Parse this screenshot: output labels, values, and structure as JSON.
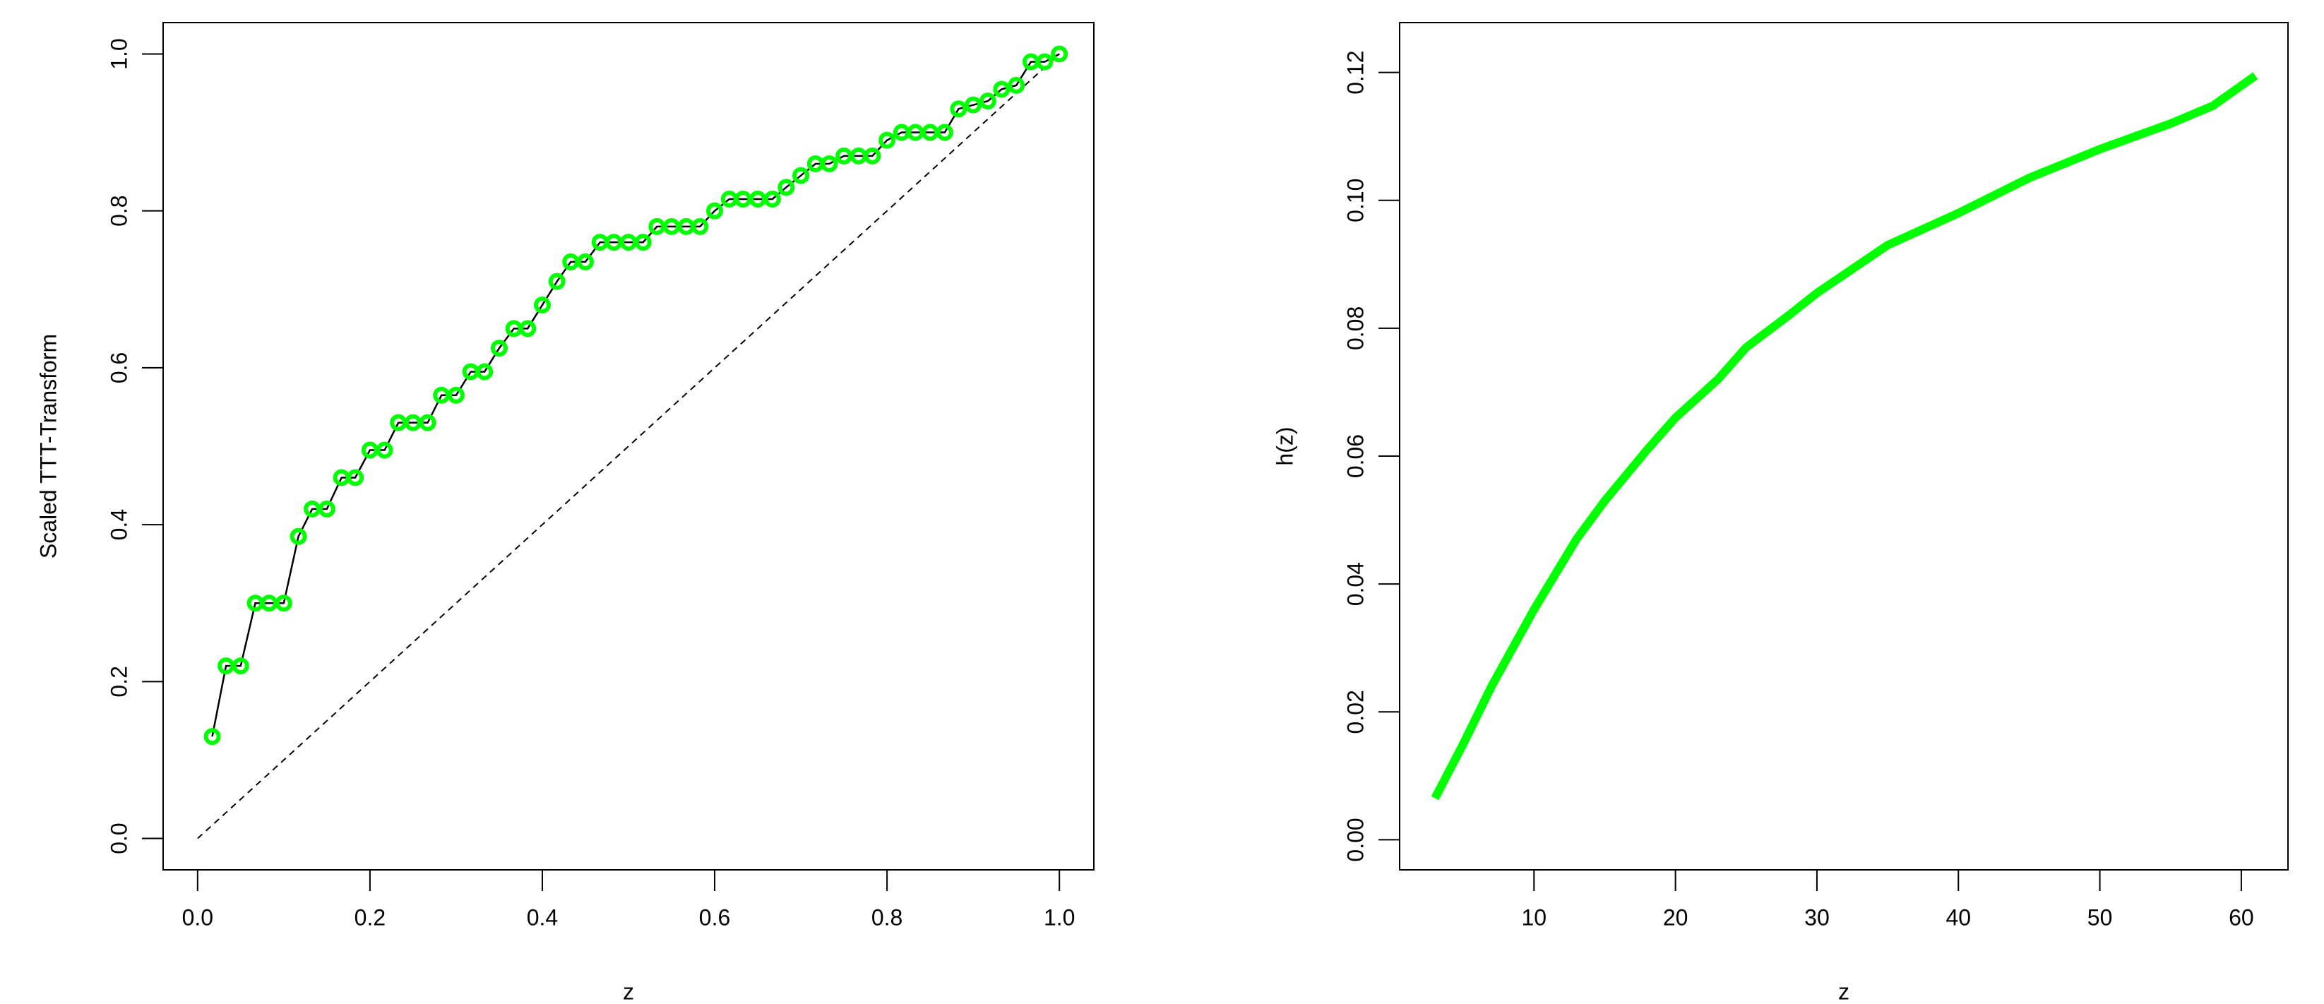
{
  "chart_data": [
    {
      "type": "step-points",
      "xlabel": "z",
      "ylabel": "Scaled TTT-Transform",
      "xlim": [
        -0.04,
        1.04
      ],
      "ylim": [
        -0.04,
        1.04
      ],
      "xticks": [
        {
          "value": 0,
          "label": "0.0"
        },
        {
          "value": 0.2,
          "label": "0.2"
        },
        {
          "value": 0.4,
          "label": "0.4"
        },
        {
          "value": 0.6,
          "label": "0.6"
        },
        {
          "value": 0.8,
          "label": "0.8"
        },
        {
          "value": 1,
          "label": "1.0"
        }
      ],
      "yticks": [
        {
          "value": 0,
          "label": "0.0"
        },
        {
          "value": 0.2,
          "label": "0.2"
        },
        {
          "value": 0.4,
          "label": "0.4"
        },
        {
          "value": 0.6,
          "label": "0.6"
        },
        {
          "value": 0.8,
          "label": "0.8"
        },
        {
          "value": 1,
          "label": "1.0"
        }
      ],
      "reference_line": {
        "x": [
          0,
          1
        ],
        "values": [
          0,
          1
        ],
        "color": "#000000"
      },
      "series": [
        {
          "color": "#00ff00",
          "line_color": "#000000",
          "x": [
            0.017,
            0.033,
            0.05,
            0.067,
            0.083,
            0.1,
            0.117,
            0.133,
            0.15,
            0.167,
            0.183,
            0.2,
            0.217,
            0.233,
            0.25,
            0.267,
            0.283,
            0.3,
            0.317,
            0.333,
            0.35,
            0.367,
            0.383,
            0.4,
            0.417,
            0.433,
            0.45,
            0.467,
            0.483,
            0.5,
            0.517,
            0.533,
            0.55,
            0.567,
            0.583,
            0.6,
            0.617,
            0.633,
            0.65,
            0.667,
            0.683,
            0.7,
            0.717,
            0.733,
            0.75,
            0.767,
            0.783,
            0.8,
            0.817,
            0.833,
            0.85,
            0.867,
            0.883,
            0.9,
            0.917,
            0.933,
            0.95,
            0.967,
            0.983,
            1.0
          ],
          "values": [
            0.13,
            0.22,
            0.22,
            0.3,
            0.3,
            0.3,
            0.385,
            0.42,
            0.42,
            0.46,
            0.46,
            0.495,
            0.495,
            0.53,
            0.53,
            0.53,
            0.565,
            0.565,
            0.595,
            0.595,
            0.625,
            0.65,
            0.65,
            0.68,
            0.71,
            0.735,
            0.735,
            0.76,
            0.76,
            0.76,
            0.76,
            0.78,
            0.78,
            0.78,
            0.78,
            0.8,
            0.815,
            0.815,
            0.815,
            0.815,
            0.83,
            0.845,
            0.86,
            0.86,
            0.87,
            0.87,
            0.87,
            0.89,
            0.9,
            0.9,
            0.9,
            0.9,
            0.93,
            0.935,
            0.94,
            0.955,
            0.96,
            0.99,
            0.99,
            1.0
          ]
        }
      ]
    },
    {
      "type": "line",
      "xlabel": "z",
      "ylabel": "h(z)",
      "xlim": [
        0.5,
        63.3
      ],
      "ylim": [
        -0.0047,
        0.1278
      ],
      "xticks": [
        10,
        20,
        30,
        40,
        50,
        60
      ],
      "yticks": [
        {
          "value": 0,
          "label": "0.00"
        },
        {
          "value": 0.02,
          "label": "0.02"
        },
        {
          "value": 0.04,
          "label": "0.04"
        },
        {
          "value": 0.06,
          "label": "0.06"
        },
        {
          "value": 0.08,
          "label": "0.08"
        },
        {
          "value": 0.1,
          "label": "0.10"
        },
        {
          "value": 0.12,
          "label": "0.12"
        }
      ],
      "series": [
        {
          "color": "#00ff00",
          "x": [
            3,
            5,
            7,
            10,
            13,
            15,
            18,
            20,
            23,
            25,
            28,
            30,
            35,
            40,
            45,
            50,
            55,
            58,
            61
          ],
          "values": [
            0.0065,
            0.015,
            0.024,
            0.036,
            0.047,
            0.053,
            0.061,
            0.066,
            0.072,
            0.077,
            0.082,
            0.0855,
            0.093,
            0.098,
            0.1035,
            0.108,
            0.112,
            0.1148,
            0.1195
          ]
        }
      ]
    }
  ]
}
